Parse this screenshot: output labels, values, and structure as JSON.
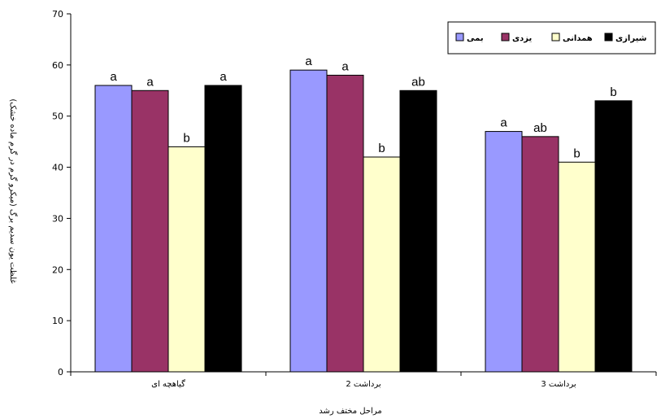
{
  "chart_data": {
    "type": "bar",
    "categories": [
      "گیاهچه ای",
      "برداشت 2",
      "برداشت 3"
    ],
    "series": [
      {
        "name": "بمی",
        "color": "#9999ff",
        "values": [
          56,
          59,
          47
        ],
        "letters": [
          "a",
          "a",
          "a"
        ]
      },
      {
        "name": "یزدی",
        "color": "#993366",
        "values": [
          55,
          58,
          46
        ],
        "letters": [
          "a",
          "a",
          "ab"
        ]
      },
      {
        "name": "همدانی",
        "color": "#ffffcc",
        "values": [
          44,
          42,
          41
        ],
        "letters": [
          "b",
          "b",
          "b"
        ]
      },
      {
        "name": "شیرازی",
        "color": "#000000",
        "values": [
          56,
          55,
          53
        ],
        "letters": [
          "a",
          "ab",
          "b"
        ]
      }
    ],
    "xlabel": "مراحل مختف رشد",
    "ylabel": "غلظت یون سدیم برگ (میکرو گرم در گرم ماده خشک)",
    "ylim": [
      0,
      70
    ],
    "yticks": [
      0,
      10,
      20,
      30,
      40,
      50,
      60,
      70
    ],
    "grid": false,
    "legend_position": "top-right"
  }
}
